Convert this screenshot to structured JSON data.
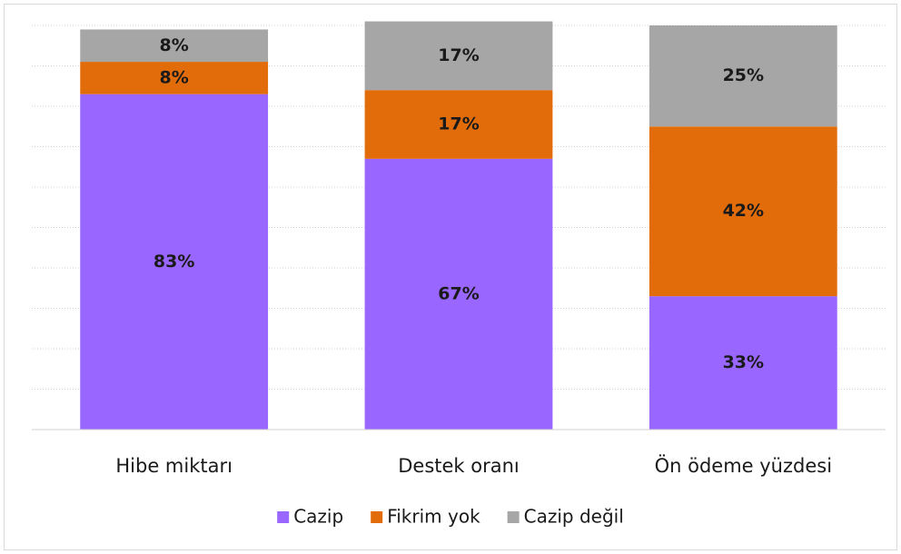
{
  "chart_data": {
    "type": "stacked_bar",
    "categories": [
      "Hibe miktarı",
      "Destek oranı",
      "Ön ödeme yüzdesi"
    ],
    "series": [
      {
        "name": "Cazip",
        "color": "#9966ff",
        "values": [
          83,
          67,
          33
        ],
        "value_labels": [
          "83%",
          "67%",
          "33%"
        ]
      },
      {
        "name": "Fikrim yok",
        "color": "#e36c0a",
        "values": [
          8,
          17,
          42
        ],
        "value_labels": [
          "8%",
          "17%",
          "42%"
        ]
      },
      {
        "name": "Cazip değil",
        "color": "#a6a6a6",
        "values": [
          8,
          17,
          25
        ],
        "value_labels": [
          "8%",
          "17%",
          "25%"
        ]
      }
    ],
    "ylim": [
      0,
      100
    ],
    "yticks": [
      0,
      10,
      20,
      30,
      40,
      50,
      60,
      70,
      80,
      90,
      100
    ],
    "grid": true,
    "legend": "bottom"
  }
}
